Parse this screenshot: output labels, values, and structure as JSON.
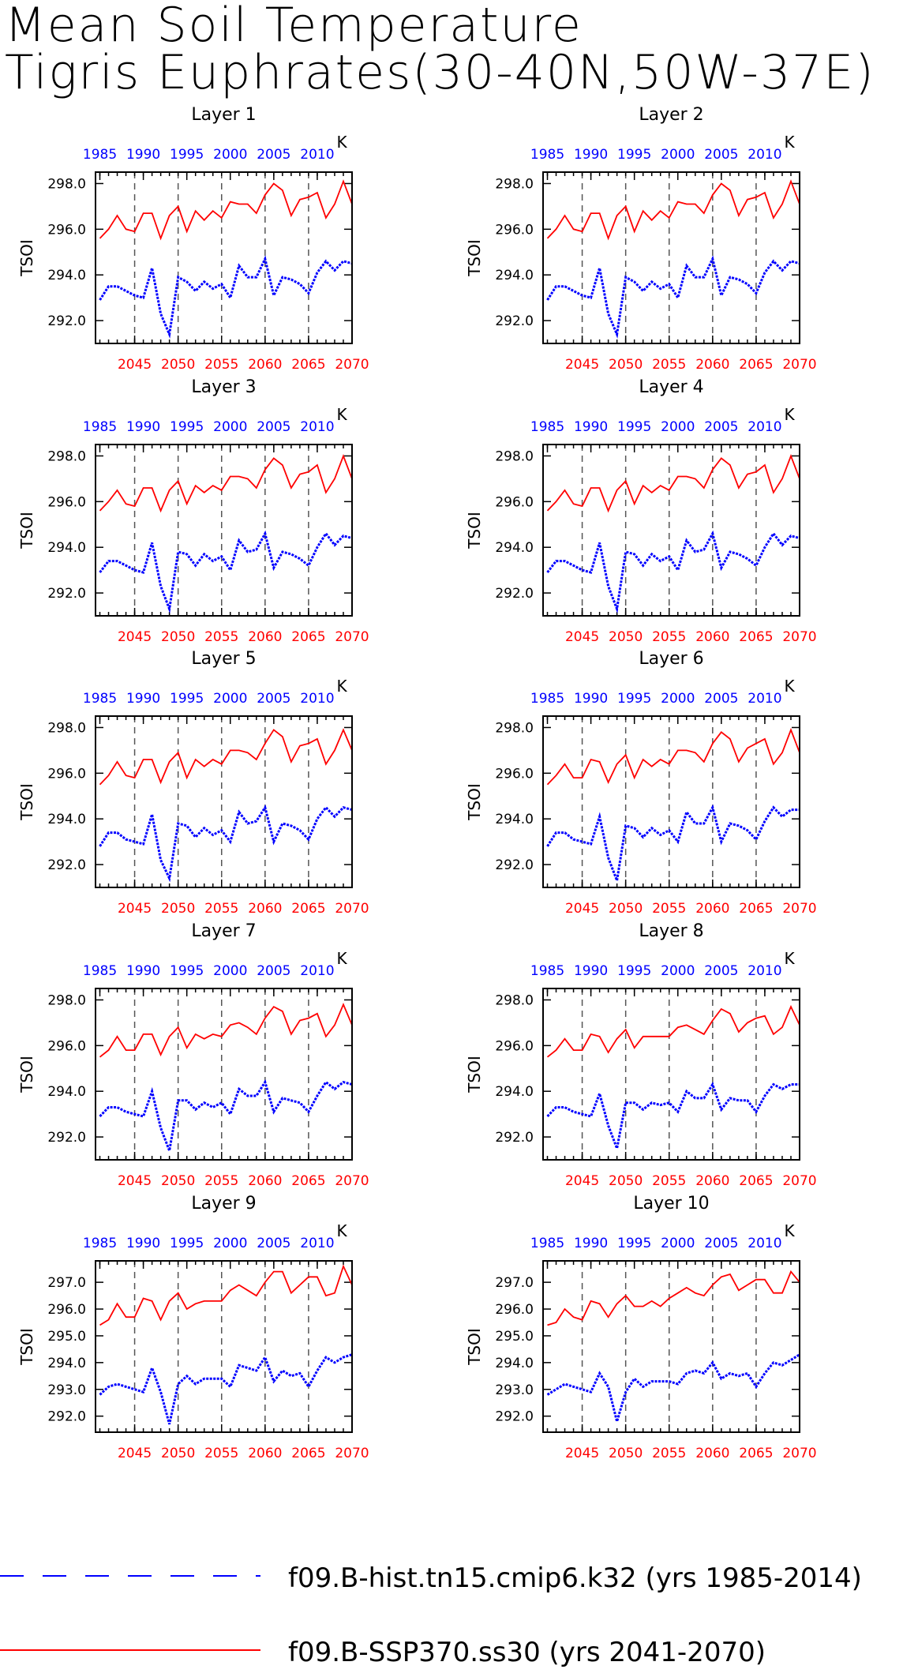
{
  "chart_data": {
    "type": "line",
    "title_lines": [
      "Mean Soil Temperature",
      "Tigris Euphrates(30-40N,50W-37E)"
    ],
    "ylabel": "TSOI",
    "units": "K",
    "bottom_axis_ticks": [
      "2045",
      "2050",
      "2055",
      "2060",
      "2065",
      "2070"
    ],
    "top_axis_ticks": [
      "1985",
      "1990",
      "1995",
      "2000",
      "2005",
      "2010"
    ],
    "x_future": [
      2041,
      2042,
      2043,
      2044,
      2045,
      2046,
      2047,
      2048,
      2049,
      2050,
      2051,
      2052,
      2053,
      2054,
      2055,
      2056,
      2057,
      2058,
      2059,
      2060,
      2061,
      2062,
      2063,
      2064,
      2065,
      2066,
      2067,
      2068,
      2069,
      2070
    ],
    "x_hist": [
      1985,
      1986,
      1987,
      1988,
      1989,
      1990,
      1991,
      1992,
      1993,
      1994,
      1995,
      1996,
      1997,
      1998,
      1999,
      2000,
      2001,
      2002,
      2003,
      2004,
      2005,
      2006,
      2007,
      2008,
      2009,
      2010,
      2011,
      2012,
      2013,
      2014
    ],
    "series_style": [
      {
        "name": "f09.B-hist.tn15.cmip6.k32 (yrs 1985-2014)",
        "color": "#0000ff",
        "dash": "dashed"
      },
      {
        "name": "f09.B-SSP370.ss30 (yrs 2041-2070)",
        "color": "#ff0000",
        "dash": "solid"
      }
    ],
    "panels": [
      {
        "title": "Layer 1",
        "ylim": [
          291.0,
          298.5
        ],
        "yticks": [
          "292.0",
          "294.0",
          "296.0",
          "298.0"
        ],
        "hist": [
          292.9,
          293.5,
          293.5,
          293.3,
          293.1,
          293.0,
          294.3,
          292.3,
          291.4,
          293.9,
          293.7,
          293.3,
          293.7,
          293.4,
          293.6,
          293.0,
          294.4,
          293.9,
          293.9,
          294.7,
          293.1,
          293.9,
          293.8,
          293.6,
          293.2,
          294.1,
          294.6,
          294.2,
          294.6,
          294.5
        ],
        "future": [
          295.6,
          296.0,
          296.6,
          296.0,
          295.9,
          296.7,
          296.7,
          295.6,
          296.6,
          297.0,
          295.9,
          296.8,
          296.4,
          296.8,
          296.5,
          297.2,
          297.1,
          297.1,
          296.7,
          297.5,
          298.0,
          297.7,
          296.6,
          297.3,
          297.4,
          297.6,
          296.5,
          297.1,
          298.1,
          297.1
        ]
      },
      {
        "title": "Layer 2",
        "ylim": [
          291.0,
          298.5
        ],
        "yticks": [
          "292.0",
          "294.0",
          "296.0",
          "298.0"
        ],
        "hist": [
          292.9,
          293.5,
          293.5,
          293.3,
          293.1,
          293.0,
          294.3,
          292.3,
          291.4,
          293.9,
          293.7,
          293.3,
          293.7,
          293.4,
          293.6,
          293.0,
          294.4,
          293.9,
          293.9,
          294.7,
          293.1,
          293.9,
          293.8,
          293.6,
          293.2,
          294.1,
          294.6,
          294.2,
          294.6,
          294.5
        ],
        "future": [
          295.6,
          296.0,
          296.6,
          296.0,
          295.9,
          296.7,
          296.7,
          295.6,
          296.6,
          297.0,
          295.9,
          296.8,
          296.4,
          296.8,
          296.5,
          297.2,
          297.1,
          297.1,
          296.7,
          297.5,
          298.0,
          297.7,
          296.6,
          297.3,
          297.4,
          297.6,
          296.5,
          297.1,
          298.1,
          297.1
        ]
      },
      {
        "title": "Layer 3",
        "ylim": [
          291.0,
          298.5
        ],
        "yticks": [
          "292.0",
          "294.0",
          "296.0",
          "298.0"
        ],
        "hist": [
          292.9,
          293.4,
          293.4,
          293.2,
          293.0,
          292.9,
          294.2,
          292.3,
          291.3,
          293.8,
          293.7,
          293.2,
          293.7,
          293.4,
          293.6,
          293.0,
          294.3,
          293.8,
          293.9,
          294.6,
          293.1,
          293.8,
          293.7,
          293.5,
          293.2,
          294.0,
          294.6,
          294.1,
          294.5,
          294.4
        ],
        "future": [
          295.6,
          296.0,
          296.5,
          295.9,
          295.8,
          296.6,
          296.6,
          295.6,
          296.5,
          296.9,
          295.9,
          296.7,
          296.4,
          296.7,
          296.5,
          297.1,
          297.1,
          297.0,
          296.6,
          297.4,
          297.9,
          297.6,
          296.6,
          297.2,
          297.3,
          297.6,
          296.4,
          297.0,
          298.0,
          297.0
        ]
      },
      {
        "title": "Layer 4",
        "ylim": [
          291.0,
          298.5
        ],
        "yticks": [
          "292.0",
          "294.0",
          "296.0",
          "298.0"
        ],
        "hist": [
          292.9,
          293.4,
          293.4,
          293.2,
          293.0,
          292.9,
          294.2,
          292.3,
          291.3,
          293.8,
          293.7,
          293.2,
          293.7,
          293.4,
          293.6,
          293.0,
          294.3,
          293.8,
          293.9,
          294.6,
          293.1,
          293.8,
          293.7,
          293.5,
          293.2,
          294.0,
          294.6,
          294.1,
          294.5,
          294.4
        ],
        "future": [
          295.6,
          296.0,
          296.5,
          295.9,
          295.8,
          296.6,
          296.6,
          295.6,
          296.5,
          296.9,
          295.9,
          296.7,
          296.4,
          296.7,
          296.5,
          297.1,
          297.1,
          297.0,
          296.6,
          297.4,
          297.9,
          297.6,
          296.6,
          297.2,
          297.3,
          297.6,
          296.4,
          297.0,
          298.0,
          297.0
        ]
      },
      {
        "title": "Layer 5",
        "ylim": [
          291.0,
          298.5
        ],
        "yticks": [
          "292.0",
          "294.0",
          "296.0",
          "298.0"
        ],
        "hist": [
          292.8,
          293.4,
          293.4,
          293.1,
          293.0,
          292.9,
          294.2,
          292.2,
          291.4,
          293.8,
          293.7,
          293.2,
          293.6,
          293.3,
          293.5,
          293.0,
          294.3,
          293.8,
          293.9,
          294.5,
          293.0,
          293.8,
          293.7,
          293.5,
          293.1,
          294.0,
          294.5,
          294.1,
          294.5,
          294.4
        ],
        "future": [
          295.5,
          295.9,
          296.5,
          295.9,
          295.8,
          296.6,
          296.6,
          295.6,
          296.5,
          296.9,
          295.8,
          296.6,
          296.3,
          296.6,
          296.4,
          297.0,
          297.0,
          296.9,
          296.6,
          297.3,
          297.9,
          297.6,
          296.5,
          297.2,
          297.3,
          297.5,
          296.4,
          297.0,
          297.9,
          297.0
        ]
      },
      {
        "title": "Layer 6",
        "ylim": [
          291.0,
          298.5
        ],
        "yticks": [
          "292.0",
          "294.0",
          "296.0",
          "298.0"
        ],
        "hist": [
          292.8,
          293.4,
          293.4,
          293.1,
          293.0,
          292.9,
          294.1,
          292.3,
          291.3,
          293.7,
          293.6,
          293.2,
          293.6,
          293.3,
          293.5,
          293.0,
          294.3,
          293.8,
          293.8,
          294.5,
          293.0,
          293.8,
          293.7,
          293.5,
          293.1,
          293.9,
          294.5,
          294.1,
          294.4,
          294.4
        ],
        "future": [
          295.5,
          295.9,
          296.4,
          295.8,
          295.8,
          296.6,
          296.5,
          295.6,
          296.4,
          296.8,
          295.8,
          296.6,
          296.3,
          296.6,
          296.4,
          297.0,
          297.0,
          296.9,
          296.5,
          297.3,
          297.8,
          297.5,
          296.5,
          297.1,
          297.3,
          297.5,
          296.4,
          296.9,
          297.9,
          296.9
        ]
      },
      {
        "title": "Layer 7",
        "ylim": [
          291.0,
          298.5
        ],
        "yticks": [
          "292.0",
          "294.0",
          "296.0",
          "298.0"
        ],
        "hist": [
          292.9,
          293.3,
          293.3,
          293.1,
          293.0,
          292.9,
          294.0,
          292.4,
          291.4,
          293.6,
          293.6,
          293.2,
          293.5,
          293.3,
          293.5,
          293.0,
          294.1,
          293.8,
          293.8,
          294.4,
          293.1,
          293.7,
          293.6,
          293.5,
          293.1,
          293.8,
          294.4,
          294.1,
          294.4,
          294.3
        ],
        "future": [
          295.5,
          295.8,
          296.4,
          295.8,
          295.8,
          296.5,
          296.5,
          295.6,
          296.4,
          296.8,
          295.9,
          296.5,
          296.3,
          296.5,
          296.4,
          296.9,
          297.0,
          296.8,
          296.5,
          297.2,
          297.7,
          297.5,
          296.5,
          297.1,
          297.2,
          297.4,
          296.4,
          296.9,
          297.8,
          296.9
        ]
      },
      {
        "title": "Layer 8",
        "ylim": [
          291.0,
          298.5
        ],
        "yticks": [
          "292.0",
          "294.0",
          "296.0",
          "298.0"
        ],
        "hist": [
          292.9,
          293.3,
          293.3,
          293.1,
          293.0,
          292.9,
          293.9,
          292.5,
          291.5,
          293.5,
          293.5,
          293.2,
          293.5,
          293.4,
          293.5,
          293.1,
          294.0,
          293.7,
          293.7,
          294.3,
          293.2,
          293.7,
          293.6,
          293.6,
          293.1,
          293.8,
          294.3,
          294.1,
          294.3,
          294.3
        ],
        "future": [
          295.5,
          295.8,
          296.3,
          295.8,
          295.8,
          296.5,
          296.4,
          295.7,
          296.3,
          296.7,
          295.9,
          296.4,
          296.4,
          296.4,
          296.4,
          296.8,
          296.9,
          296.7,
          296.5,
          297.1,
          297.6,
          297.4,
          296.6,
          297.0,
          297.2,
          297.3,
          296.5,
          296.8,
          297.7,
          296.9
        ]
      },
      {
        "title": "Layer 9",
        "ylim": [
          291.4,
          297.8
        ],
        "yticks": [
          "292.0",
          "293.0",
          "294.0",
          "295.0",
          "296.0",
          "297.0"
        ],
        "hist": [
          292.8,
          293.1,
          293.2,
          293.1,
          293.0,
          292.9,
          293.8,
          292.9,
          291.7,
          293.2,
          293.5,
          293.2,
          293.4,
          293.4,
          293.4,
          293.1,
          293.9,
          293.8,
          293.7,
          294.2,
          293.3,
          293.7,
          293.5,
          293.6,
          293.1,
          293.7,
          294.2,
          294.0,
          294.2,
          294.3
        ],
        "future": [
          295.4,
          295.6,
          296.2,
          295.7,
          295.7,
          296.4,
          296.3,
          295.6,
          296.3,
          296.6,
          296.0,
          296.2,
          296.3,
          296.3,
          296.3,
          296.7,
          296.9,
          296.7,
          296.5,
          297.0,
          297.4,
          297.4,
          296.6,
          296.9,
          297.2,
          297.2,
          296.5,
          296.6,
          297.6,
          296.9
        ]
      },
      {
        "title": "Layer 10",
        "ylim": [
          291.4,
          297.8
        ],
        "yticks": [
          "292.0",
          "293.0",
          "294.0",
          "295.0",
          "296.0",
          "297.0"
        ],
        "hist": [
          292.8,
          293.0,
          293.2,
          293.1,
          293.0,
          292.9,
          293.6,
          293.1,
          291.8,
          292.9,
          293.4,
          293.1,
          293.3,
          293.3,
          293.3,
          293.2,
          293.6,
          293.7,
          293.6,
          294.0,
          293.4,
          293.6,
          293.5,
          293.6,
          293.1,
          293.6,
          294.0,
          293.9,
          294.1,
          294.3
        ],
        "future": [
          295.4,
          295.5,
          296.0,
          295.7,
          295.6,
          296.3,
          296.2,
          295.7,
          296.2,
          296.5,
          296.1,
          296.1,
          296.3,
          296.1,
          296.4,
          296.6,
          296.8,
          296.6,
          296.5,
          296.9,
          297.2,
          297.3,
          296.7,
          296.9,
          297.1,
          297.1,
          296.6,
          296.6,
          297.4,
          297.0
        ]
      }
    ]
  }
}
